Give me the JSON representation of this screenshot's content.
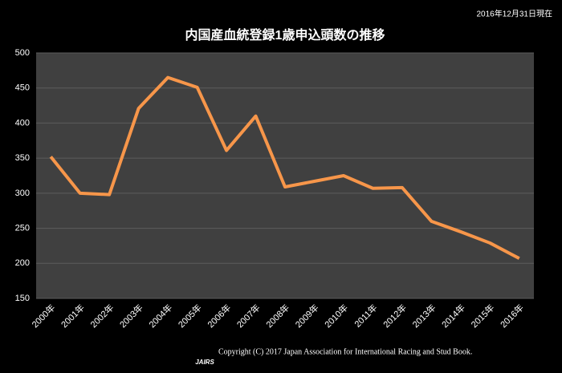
{
  "chart_data": {
    "type": "line",
    "title": "内国産血統登録1歳申込頭数の推移",
    "subtitle": "2016年12月31日現在",
    "footer": "Copyright (C) 2017 Japan Association for International Racing and Stud Book.",
    "logo": "JAIRS",
    "categories": [
      "2000年",
      "2001年",
      "2002年",
      "2003年",
      "2004年",
      "2005年",
      "2006年",
      "2007年",
      "2008年",
      "2009年",
      "2010年",
      "2011年",
      "2012年",
      "2013年",
      "2014年",
      "2015年",
      "2016年"
    ],
    "values": [
      352,
      300,
      298,
      421,
      465,
      451,
      361,
      410,
      309,
      317,
      325,
      307,
      308,
      260,
      245,
      229,
      207
    ],
    "color": "#f7964a",
    "ylim": [
      150,
      500
    ],
    "yticks": [
      150,
      200,
      250,
      300,
      350,
      400,
      450,
      500
    ],
    "grid": true
  }
}
